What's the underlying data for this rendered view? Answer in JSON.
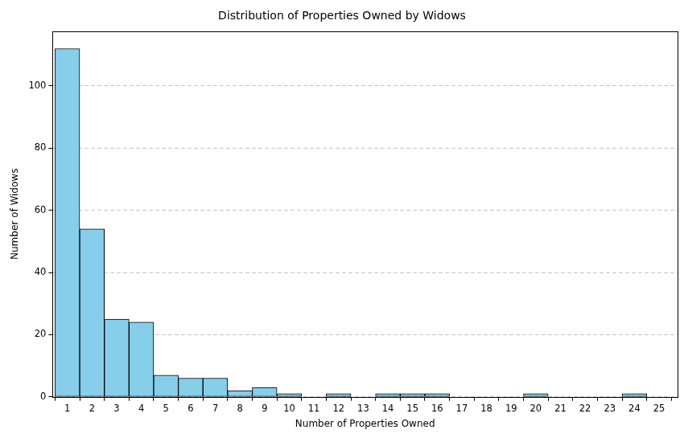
{
  "chart_data": {
    "type": "histogram",
    "title": "Distribution of Properties Owned by Widows",
    "x_label": "Number of Properties Owned",
    "y_label": "Number of Widows",
    "bins": [
      0.5,
      1.5,
      2.5,
      3.5,
      4.5,
      5.5,
      6.5,
      7.5,
      8.5,
      9.5,
      10.5,
      11.5,
      12.5,
      13.5,
      14.5,
      15.5,
      16.5,
      17.5,
      18.5,
      19.5,
      20.5,
      21.5,
      22.5,
      23.5,
      24.5
    ],
    "values": [
      112,
      54,
      25,
      24,
      7,
      6,
      6,
      2,
      3,
      1,
      0,
      1,
      0,
      1,
      1,
      1,
      0,
      0,
      0,
      1,
      0,
      0,
      0,
      1
    ],
    "color": "#87ceeb",
    "xlim": [
      0.4,
      25.75
    ],
    "xticks": [
      1,
      2,
      3,
      4,
      5,
      6,
      7,
      8,
      9,
      10,
      11,
      12,
      13,
      14,
      15,
      16,
      17,
      18,
      19,
      20,
      21,
      22,
      23,
      24,
      25
    ],
    "ylim": [
      0,
      117.6
    ],
    "yticks": [
      0,
      20,
      40,
      60,
      80,
      100
    ],
    "grid": "y"
  }
}
